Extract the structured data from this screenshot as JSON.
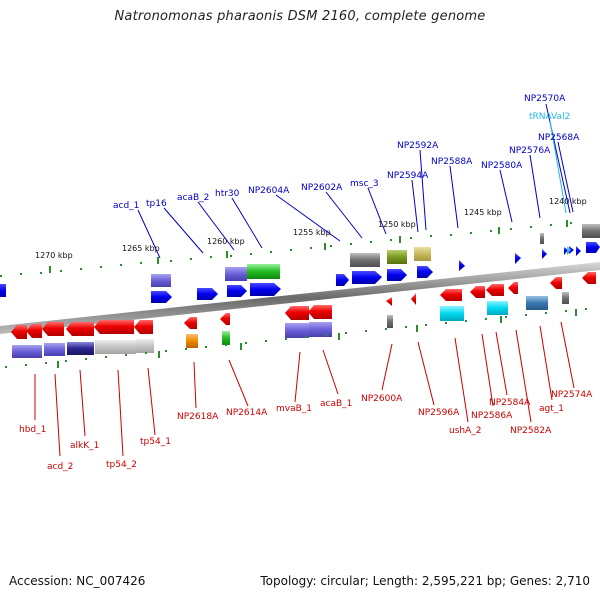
{
  "title": "Natronomonas pharaonis DSM 2160, complete genome",
  "footer": {
    "accession": "Accession: NC_007426",
    "summary": "Topology: circular; Length: 2,595,221 bp; Genes: 2,710"
  },
  "colors": {
    "forward_label": "#0000c8",
    "reverse_label": "#cc0000",
    "trna_label": "#22b8e8",
    "forward_gene": "#0000ee",
    "reverse_gene": "#ee0000",
    "backbone": "#888888"
  },
  "kbp_ticks": [
    {
      "text": "1270 kbp"
    },
    {
      "text": "1265 kbp"
    },
    {
      "text": "1260 kbp"
    },
    {
      "text": "1255 kbp"
    },
    {
      "text": "1250 kbp"
    },
    {
      "text": "1245 kbp"
    },
    {
      "text": "1240 kbp"
    }
  ],
  "forward_labels": [
    "acd_1",
    "tp16",
    "acaB_2",
    "htr30",
    "NP2604A",
    "NP2602A",
    "msc_3",
    "NP2594A",
    "NP2592A",
    "NP2588A",
    "NP2580A",
    "NP2576A",
    "NP2568A",
    "tRNAVal2",
    "NP2570A"
  ],
  "reverse_labels": [
    "hbd_1",
    "acd_2",
    "alkK_1",
    "tp54_2",
    "tp54_1",
    "NP2618A",
    "NP2614A",
    "mvaB_1",
    "acaB_1",
    "NP2600A",
    "NP2596A",
    "ushA_2",
    "NP2586A",
    "NP2584A",
    "NP2582A",
    "agt_1",
    "NP2574A"
  ]
}
